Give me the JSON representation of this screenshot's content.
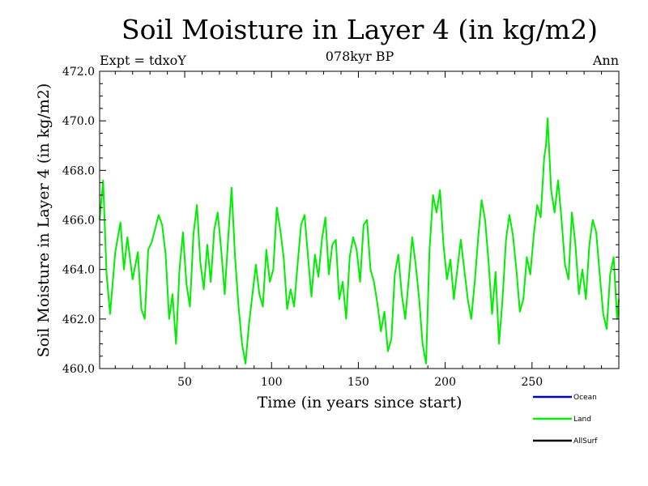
{
  "chart_data": {
    "type": "line",
    "title": "Soil Moisture in Layer 4 (in kg/m2)",
    "subtitle": "078kyr BP",
    "left_label": "Expt = tdxoY",
    "right_label": "Ann",
    "xlabel": "Time (in years since start)",
    "ylabel": "Soil Moisture in Layer 4 (in kg/m2)",
    "xlim": [
      1,
      300
    ],
    "ylim": [
      460.0,
      472.0
    ],
    "x_ticks": [
      50,
      100,
      150,
      200,
      250
    ],
    "x_tick_labels": [
      "50",
      "100",
      "150",
      "200",
      "250"
    ],
    "y_ticks": [
      460,
      462,
      464,
      466,
      468,
      470,
      472
    ],
    "y_tick_labels": [
      "460.0",
      "462.0",
      "464.0",
      "466.0",
      "468.0",
      "470.0",
      "472.0"
    ],
    "grid": false,
    "legend_position": "bottom-right",
    "legend": [
      {
        "label": "Ocean",
        "color": "#0000cc"
      },
      {
        "label": "Land",
        "color": "#00ee00"
      },
      {
        "label": "AllSurf",
        "color": "#000000"
      }
    ],
    "series": [
      {
        "name": "Land",
        "color": "#00ee00",
        "anchors_x": [
          1,
          3,
          5,
          7,
          10,
          13,
          15,
          17,
          20,
          23,
          25,
          27,
          29,
          31,
          35,
          37,
          39,
          41,
          43,
          45,
          47,
          49,
          51,
          53,
          55,
          57,
          59,
          61,
          63,
          65,
          67,
          69,
          71,
          73,
          75,
          77,
          79,
          81,
          83,
          85,
          87,
          89,
          91,
          93,
          95,
          97,
          99,
          101,
          103,
          105,
          107,
          109,
          111,
          113,
          115,
          117,
          119,
          121,
          123,
          125,
          127,
          129,
          131,
          133,
          135,
          137,
          139,
          141,
          143,
          145,
          147,
          149,
          151,
          153,
          155,
          157,
          159,
          161,
          163,
          165,
          167,
          169,
          171,
          173,
          175,
          177,
          179,
          181,
          183,
          185,
          187,
          189,
          191,
          193,
          195,
          197,
          199,
          201,
          203,
          205,
          207,
          209,
          211,
          213,
          215,
          217,
          219,
          221,
          223,
          225,
          227,
          229,
          231,
          233,
          235,
          237,
          239,
          241,
          243,
          245,
          247,
          249,
          251,
          253,
          255,
          257,
          258,
          259,
          261,
          263,
          265,
          267,
          269,
          271,
          273,
          275,
          277,
          279,
          281,
          283,
          285,
          287,
          289,
          291,
          293,
          295,
          297,
          299,
          300
        ],
        "anchors_y": [
          466.0,
          467.6,
          463.8,
          462.2,
          464.7,
          465.9,
          464.0,
          465.3,
          463.6,
          464.7,
          462.4,
          462.0,
          464.8,
          465.1,
          466.2,
          465.8,
          464.6,
          462.0,
          463.0,
          461.0,
          464.0,
          465.5,
          463.4,
          462.5,
          465.4,
          466.6,
          464.3,
          463.2,
          465.0,
          463.5,
          465.6,
          466.3,
          464.8,
          463.0,
          465.2,
          467.3,
          464.5,
          462.5,
          461.0,
          460.2,
          461.8,
          463.0,
          464.2,
          463.0,
          462.5,
          464.8,
          463.5,
          464.0,
          466.5,
          465.6,
          464.5,
          462.4,
          463.2,
          462.5,
          464.2,
          465.8,
          466.2,
          464.5,
          462.9,
          464.6,
          463.7,
          465.2,
          466.1,
          463.8,
          465.0,
          465.2,
          462.8,
          463.5,
          462.0,
          464.5,
          465.3,
          464.8,
          463.5,
          465.8,
          466.0,
          464.0,
          463.5,
          462.6,
          461.5,
          462.3,
          460.7,
          461.2,
          463.8,
          464.6,
          463.0,
          462.0,
          463.6,
          465.3,
          464.2,
          462.8,
          461.0,
          460.2,
          464.8,
          467.0,
          466.3,
          467.2,
          465.0,
          463.6,
          464.4,
          462.8,
          464.0,
          465.2,
          464.0,
          462.8,
          462.0,
          463.5,
          465.3,
          466.8,
          466.0,
          464.3,
          462.2,
          463.9,
          461.0,
          462.8,
          465.2,
          466.2,
          465.4,
          464.0,
          462.3,
          462.8,
          464.5,
          463.8,
          465.4,
          466.6,
          466.1,
          468.5,
          469.0,
          470.1,
          467.2,
          466.3,
          467.6,
          466.0,
          464.2,
          463.6,
          466.3,
          465.0,
          463.0,
          464.0,
          462.8,
          465.0,
          466.0,
          465.5,
          463.8,
          462.2,
          461.6,
          463.8,
          464.5,
          462.0,
          462.8
        ]
      }
    ]
  }
}
